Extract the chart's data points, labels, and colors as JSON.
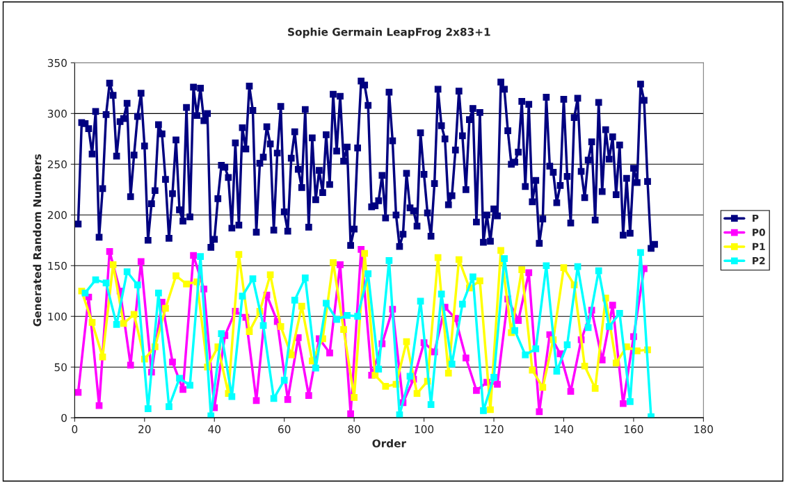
{
  "chart_data": {
    "type": "line",
    "title": "Sophie Germain LeapFrog 2x83+1",
    "xlabel": "Order",
    "ylabel": "Generated Random Numbers",
    "xlim": [
      0,
      180
    ],
    "xticks": [
      0,
      20,
      40,
      60,
      80,
      100,
      120,
      140,
      160,
      180
    ],
    "ylim": [
      0,
      350
    ],
    "yticks": [
      0,
      50,
      100,
      150,
      200,
      250,
      300,
      350
    ],
    "grid": "y",
    "legend": "right",
    "marker": "square",
    "line_style": "solid",
    "series": [
      {
        "name": "P",
        "color": "#000080",
        "x": [
          1,
          2,
          3,
          4,
          5,
          6,
          7,
          8,
          9,
          10,
          11,
          12,
          13,
          14,
          15,
          16,
          17,
          18,
          19,
          20,
          21,
          22,
          23,
          24,
          25,
          26,
          27,
          28,
          29,
          30,
          31,
          32,
          33,
          34,
          35,
          36,
          37,
          38,
          39,
          40,
          41,
          42,
          43,
          44,
          45,
          46,
          47,
          48,
          49,
          50,
          51,
          52,
          53,
          54,
          55,
          56,
          57,
          58,
          59,
          60,
          61,
          62,
          63,
          64,
          65,
          66,
          67,
          68,
          69,
          70,
          71,
          72,
          73,
          74,
          75,
          76,
          77,
          78,
          79,
          80,
          81,
          82,
          83,
          84,
          85,
          86,
          87,
          88,
          89,
          90,
          91,
          92,
          93,
          94,
          95,
          96,
          97,
          98,
          99,
          100,
          101,
          102,
          103,
          104,
          105,
          106,
          107,
          108,
          109,
          110,
          111,
          112,
          113,
          114,
          115,
          116,
          117,
          118,
          119,
          120,
          121,
          122,
          123,
          124,
          125,
          126,
          127,
          128,
          129,
          130,
          131,
          132,
          133,
          134,
          135,
          136,
          137,
          138,
          139,
          140,
          141,
          142,
          143,
          144,
          145,
          146,
          147,
          148,
          149,
          150,
          151,
          152,
          153,
          154,
          155,
          156,
          157,
          158,
          159,
          160,
          161,
          162,
          163,
          164,
          165,
          166
        ],
        "values": [
          191,
          291,
          290,
          285,
          260,
          302,
          178,
          226,
          299,
          330,
          318,
          258,
          292,
          295,
          310,
          218,
          259,
          297,
          320,
          268,
          175,
          211,
          224,
          289,
          280,
          235,
          177,
          221,
          274,
          205,
          194,
          306,
          198,
          326,
          298,
          325,
          293,
          300,
          168,
          176,
          216,
          249,
          247,
          237,
          187,
          271,
          190,
          286,
          265,
          327,
          303,
          183,
          251,
          257,
          287,
          270,
          185,
          261,
          307,
          203,
          184,
          256,
          282,
          245,
          227,
          304,
          188,
          276,
          215,
          244,
          222,
          279,
          230,
          319,
          263,
          317,
          253,
          267,
          170,
          186,
          266,
          332,
          328,
          308,
          208,
          209,
          214,
          239,
          197,
          321,
          273,
          200,
          169,
          181,
          241,
          207,
          204,
          189,
          281,
          240,
          202,
          179,
          231,
          324,
          288,
          275,
          210,
          219,
          264,
          322,
          278,
          225,
          294,
          305,
          193,
          301,
          173,
          200,
          174,
          206,
          199,
          331,
          324,
          283,
          250,
          252,
          262,
          312,
          228,
          309,
          213,
          234,
          172,
          196,
          316,
          248,
          242,
          212,
          229,
          314,
          238,
          192,
          296,
          315,
          243,
          217,
          254,
          272,
          195,
          311,
          223,
          284,
          255,
          277,
          220,
          269,
          180,
          236,
          182,
          246,
          232,
          329,
          313,
          233,
          167,
          171
        ]
      },
      {
        "name": "P0",
        "color": "#ff00ff",
        "x": [
          1,
          4,
          7,
          10,
          13,
          16,
          19,
          22,
          25,
          28,
          31,
          34,
          37,
          40,
          43,
          46,
          49,
          52,
          55,
          58,
          61,
          64,
          67,
          70,
          73,
          76,
          79,
          82,
          85,
          88,
          91,
          94,
          97,
          100,
          103,
          106,
          109,
          112,
          115,
          118,
          121,
          124,
          127,
          130,
          133,
          136,
          139,
          142,
          145,
          148,
          151,
          154,
          157,
          160,
          163
        ],
        "values": [
          25,
          119,
          12,
          164,
          125,
          52,
          154,
          45,
          114,
          55,
          28,
          160,
          127,
          10,
          81,
          105,
          99,
          17,
          121,
          95,
          18,
          79,
          22,
          78,
          64,
          151,
          4,
          166,
          42,
          73,
          107,
          15,
          38,
          74,
          65,
          109,
          98,
          59,
          27,
          35,
          33,
          117,
          96,
          143,
          6,
          82,
          63,
          26,
          77,
          106,
          57,
          111,
          14,
          80,
          147
        ]
      },
      {
        "name": "P1",
        "color": "#ffff00",
        "x": [
          2,
          5,
          8,
          11,
          14,
          17,
          20,
          23,
          26,
          29,
          32,
          35,
          38,
          41,
          44,
          47,
          50,
          53,
          56,
          59,
          62,
          65,
          68,
          71,
          74,
          77,
          80,
          83,
          86,
          89,
          92,
          95,
          98,
          101,
          104,
          107,
          110,
          113,
          116,
          119,
          122,
          125,
          128,
          131,
          134,
          137,
          140,
          143,
          146,
          149,
          152,
          155,
          158,
          161,
          164
        ],
        "values": [
          125,
          94,
          60,
          151,
          93,
          102,
          58,
          70,
          108,
          140,
          132,
          134,
          50,
          70,
          24,
          161,
          85,
          105,
          141,
          90,
          62,
          110,
          56,
          78,
          153,
          87,
          20,
          162,
          42,
          31,
          33,
          75,
          24,
          36,
          158,
          44,
          156,
          128,
          135,
          8,
          165,
          84,
          146,
          47,
          30,
          77,
          148,
          131,
          51,
          29,
          118,
          54,
          70,
          66,
          67
        ]
      },
      {
        "name": "P2",
        "color": "#00ffff",
        "x": [
          3,
          6,
          9,
          12,
          15,
          18,
          21,
          24,
          27,
          30,
          33,
          36,
          39,
          42,
          45,
          48,
          51,
          54,
          57,
          60,
          63,
          66,
          69,
          72,
          75,
          78,
          81,
          84,
          87,
          90,
          93,
          96,
          99,
          102,
          105,
          108,
          111,
          114,
          117,
          120,
          123,
          126,
          129,
          132,
          135,
          138,
          141,
          144,
          147,
          150,
          153,
          156,
          159,
          162,
          165
        ],
        "values": [
          123,
          136,
          133,
          92,
          144,
          131,
          9,
          123,
          11,
          39,
          32,
          159,
          2,
          83,
          21,
          120,
          137,
          91,
          19,
          37,
          116,
          138,
          49,
          113,
          97,
          101,
          100,
          142,
          48,
          155,
          3,
          41,
          115,
          13,
          122,
          53,
          112,
          139,
          7,
          40,
          157,
          86,
          62,
          68,
          150,
          46,
          72,
          149,
          89,
          145,
          90,
          103,
          16,
          163,
          1
        ]
      }
    ]
  }
}
